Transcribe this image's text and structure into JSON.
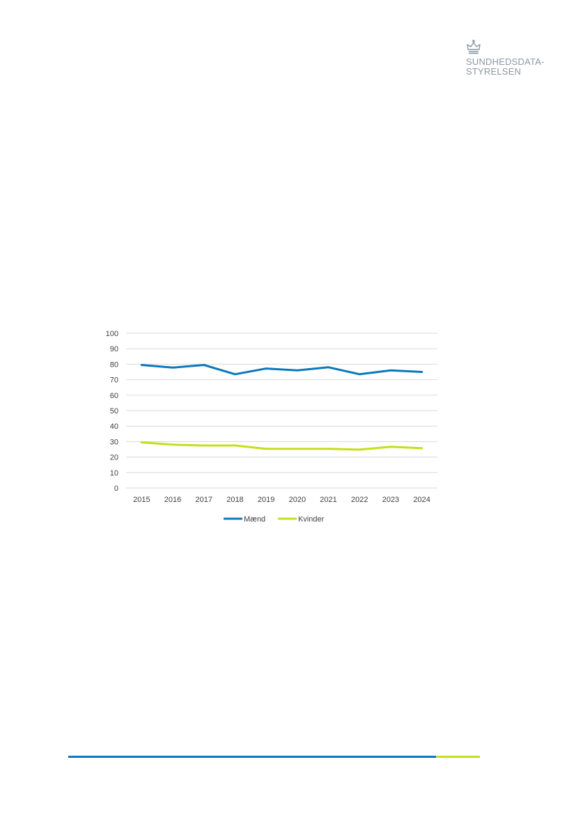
{
  "logo": {
    "icon": "crown-icon",
    "line1": "SUNDHEDSDATA-",
    "line2": "STYRELSEN",
    "color": "#8a97a3"
  },
  "chart_data": {
    "type": "line",
    "categories": [
      "2015",
      "2016",
      "2017",
      "2018",
      "2019",
      "2020",
      "2021",
      "2022",
      "2023",
      "2024"
    ],
    "series": [
      {
        "name": "Mænd",
        "color": "#0a78bd",
        "values": [
          79.5,
          77.8,
          79.5,
          73.5,
          77.2,
          76,
          78,
          73.5,
          76,
          75
        ]
      },
      {
        "name": "Kvinder",
        "color": "#c5df1a",
        "values": [
          29.5,
          28,
          27.5,
          27.5,
          25.3,
          25.3,
          25.3,
          24.8,
          26.6,
          25.7
        ]
      }
    ],
    "ylim": [
      0,
      100
    ],
    "yticks": [
      "0",
      "10",
      "20",
      "30",
      "40",
      "50",
      "60",
      "70",
      "80",
      "90",
      "100"
    ],
    "grid": true,
    "legend": "bottom",
    "title": "",
    "xlabel": "",
    "ylabel": ""
  },
  "footer": {
    "colors": [
      "#0a78bd",
      "#c5df1a"
    ]
  }
}
